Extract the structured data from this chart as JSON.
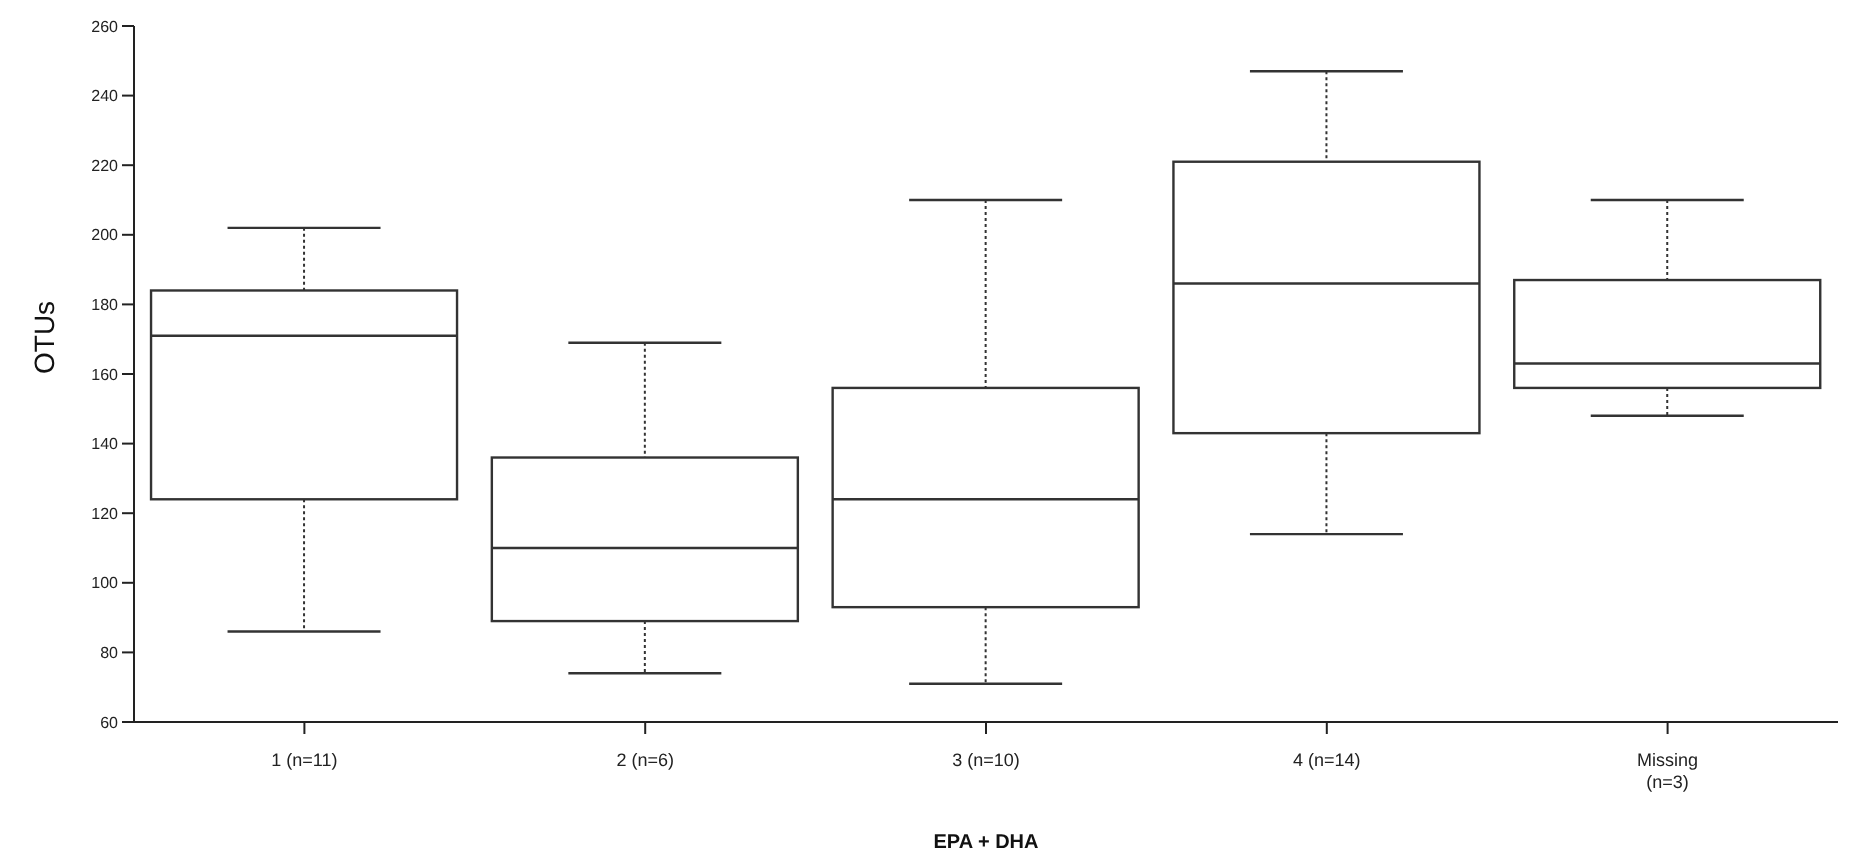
{
  "chart_data": {
    "type": "box",
    "xlabel": "EPA + DHA",
    "ylabel": "OTUs",
    "categories": [
      "1 (n=11)",
      "2 (n=6)",
      "3 (n=10)",
      "4 (n=14)",
      "Missing (n=3)"
    ],
    "boxes": [
      {
        "low": 86,
        "q1": 124,
        "median": 171,
        "q3": 184,
        "high": 202
      },
      {
        "low": 74,
        "q1": 89,
        "median": 110,
        "q3": 136,
        "high": 169
      },
      {
        "low": 71,
        "q1": 93,
        "median": 124,
        "q3": 156,
        "high": 210
      },
      {
        "low": 114,
        "q1": 143,
        "median": 186,
        "q3": 221,
        "high": 247
      },
      {
        "low": 148,
        "q1": 156,
        "median": 163,
        "q3": 187,
        "high": 210
      }
    ],
    "color": "#333333",
    "ylim": [
      60,
      260
    ],
    "yticks": [
      60,
      80,
      100,
      120,
      140,
      160,
      180,
      200,
      220,
      240,
      260
    ],
    "grid": false
  }
}
